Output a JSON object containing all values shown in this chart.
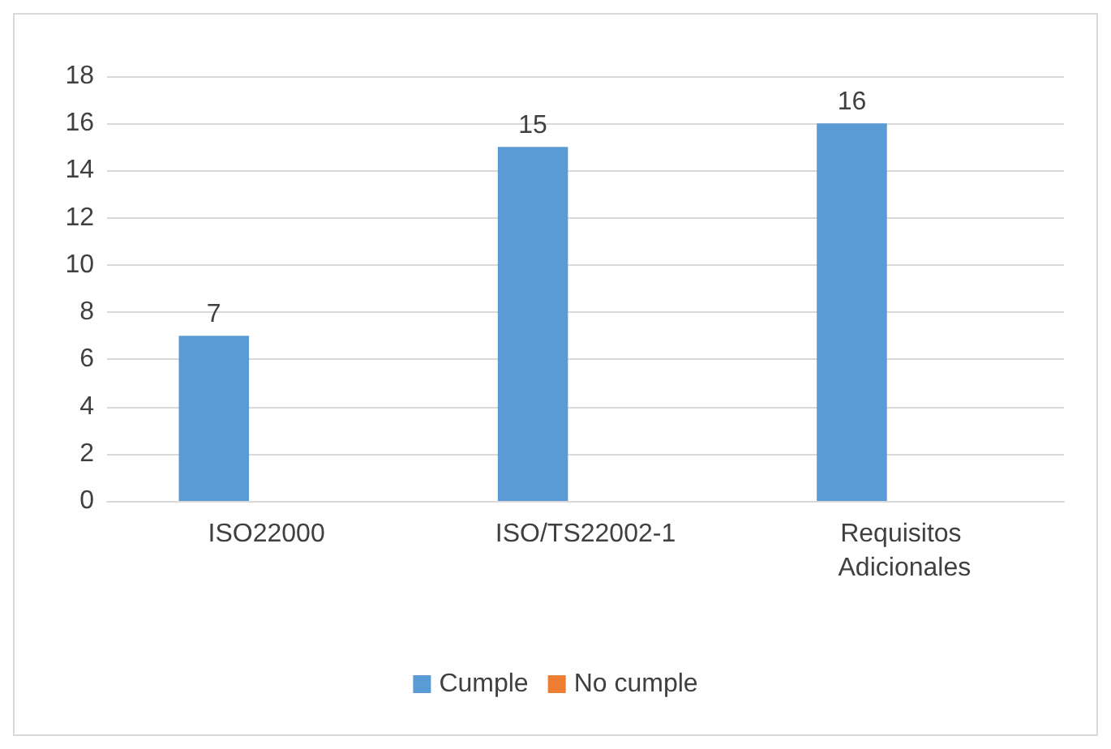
{
  "chart_data": {
    "type": "bar",
    "categories": [
      "ISO22000",
      "ISO/TS22002-1",
      "Requisitos Adicionales"
    ],
    "series": [
      {
        "name": "Cumple",
        "color": "#5b9bd5",
        "values": [
          7,
          15,
          16
        ],
        "value_labels": [
          "7",
          "15",
          "16"
        ]
      },
      {
        "name": "No cumple",
        "color": "#ed7d31",
        "values": [
          0,
          0,
          0
        ],
        "value_labels": [
          null,
          null,
          null
        ]
      }
    ],
    "ylim": [
      0,
      18
    ],
    "yticks": [
      0,
      2,
      4,
      6,
      8,
      10,
      12,
      14,
      16,
      18
    ],
    "grid": "y",
    "legend": "bottom"
  }
}
